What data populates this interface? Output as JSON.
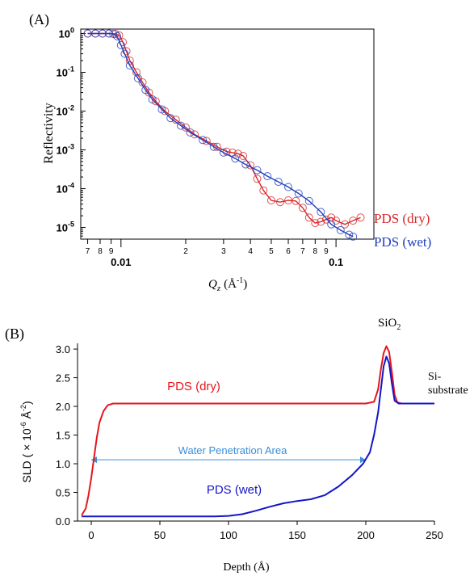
{
  "panel_a": {
    "label": "(A)",
    "ylabel": "Reflectivity",
    "xlabel_q": "Q",
    "xlabel_sub": "z",
    "xlabel_unit": "(Å",
    "xlabel_exp": "-1",
    "xlabel_close": ")",
    "series": [
      {
        "name": "PDS (dry)",
        "color": "#d62728"
      },
      {
        "name": "PDS (wet)",
        "color": "#1f3fbf"
      }
    ]
  },
  "panel_b": {
    "label": "(B)",
    "ylabel": "SLD ( × 10",
    "ylabel_exp1": "-6",
    "ylabel_mid": " Å",
    "ylabel_exp2": "-2",
    "ylabel_close": ")",
    "xlabel": "Depth (Å)",
    "annot_sio2": "SiO",
    "annot_sio2_sub": "2",
    "annot_si1": "Si-",
    "annot_si2": "substrate",
    "annot_water": "Water Penetration Area",
    "series": [
      {
        "name": "PDS (dry)",
        "color": "#e8151b"
      },
      {
        "name": "PDS (wet)",
        "color": "#1515c8"
      }
    ]
  },
  "chart_data": [
    {
      "type": "scatter",
      "title": "(A)",
      "xlabel": "Qz (Å-1)",
      "ylabel": "Reflectivity",
      "x_scale": "log",
      "y_scale": "log",
      "xlim": [
        0.0065,
        0.15
      ],
      "ylim": [
        5e-06,
        1.3
      ],
      "x_major_ticks": [
        {
          "v": 0.01,
          "label": "0.01"
        },
        {
          "v": 0.1,
          "label": "0.1"
        }
      ],
      "x_minor_ticks": [
        {
          "v": 0.007,
          "label": "7"
        },
        {
          "v": 0.008,
          "label": "8"
        },
        {
          "v": 0.009,
          "label": "9"
        },
        {
          "v": 0.02,
          "label": "2"
        },
        {
          "v": 0.03,
          "label": "3"
        },
        {
          "v": 0.04,
          "label": "4"
        },
        {
          "v": 0.05,
          "label": "5"
        },
        {
          "v": 0.06,
          "label": "6"
        },
        {
          "v": 0.07,
          "label": "7"
        },
        {
          "v": 0.08,
          "label": "8"
        },
        {
          "v": 0.09,
          "label": "9"
        }
      ],
      "y_ticks": [
        {
          "exp": 0,
          "label": "10",
          "sup": "0"
        },
        {
          "exp": -1,
          "label": "10",
          "sup": "-1"
        },
        {
          "exp": -2,
          "label": "10",
          "sup": "-2"
        },
        {
          "exp": -3,
          "label": "10",
          "sup": "-3"
        },
        {
          "exp": -4,
          "label": "10",
          "sup": "-4"
        },
        {
          "exp": -5,
          "label": "10",
          "sup": "-5"
        }
      ],
      "series": [
        {
          "name": "PDS (dry)",
          "data": [
            [
              0.007,
              1.0
            ],
            [
              0.0076,
              1.0
            ],
            [
              0.0082,
              1.0
            ],
            [
              0.0088,
              1.0
            ],
            [
              0.0094,
              0.98
            ],
            [
              0.0098,
              0.9
            ],
            [
              0.0102,
              0.6
            ],
            [
              0.0106,
              0.35
            ],
            [
              0.011,
              0.2
            ],
            [
              0.0118,
              0.1
            ],
            [
              0.0126,
              0.055
            ],
            [
              0.0135,
              0.03
            ],
            [
              0.0145,
              0.018
            ],
            [
              0.016,
              0.01
            ],
            [
              0.018,
              0.006
            ],
            [
              0.02,
              0.0038
            ],
            [
              0.022,
              0.0025
            ],
            [
              0.025,
              0.0017
            ],
            [
              0.028,
              0.0012
            ],
            [
              0.031,
              0.0009
            ],
            [
              0.033,
              0.00085
            ],
            [
              0.035,
              0.0008
            ],
            [
              0.037,
              0.0007
            ],
            [
              0.04,
              0.0004
            ],
            [
              0.043,
              0.00018
            ],
            [
              0.046,
              9e-05
            ],
            [
              0.05,
              5e-05
            ],
            [
              0.055,
              4.5e-05
            ],
            [
              0.06,
              5e-05
            ],
            [
              0.065,
              4.8e-05
            ],
            [
              0.07,
              3.2e-05
            ],
            [
              0.075,
              1.8e-05
            ],
            [
              0.08,
              1.3e-05
            ],
            [
              0.085,
              1.4e-05
            ],
            [
              0.09,
              1.6e-05
            ],
            [
              0.095,
              1.8e-05
            ],
            [
              0.1,
              1.5e-05
            ],
            [
              0.11,
              1.2e-05
            ],
            [
              0.12,
              1.5e-05
            ],
            [
              0.13,
              1.8e-05
            ]
          ]
        },
        {
          "name": "PDS (wet)",
          "data": [
            [
              0.007,
              1.0
            ],
            [
              0.0076,
              1.0
            ],
            [
              0.0082,
              1.0
            ],
            [
              0.0088,
              1.0
            ],
            [
              0.0092,
              0.97
            ],
            [
              0.0096,
              0.85
            ],
            [
              0.01,
              0.5
            ],
            [
              0.0104,
              0.3
            ],
            [
              0.011,
              0.15
            ],
            [
              0.012,
              0.07
            ],
            [
              0.013,
              0.035
            ],
            [
              0.014,
              0.02
            ],
            [
              0.0155,
              0.011
            ],
            [
              0.017,
              0.0066
            ],
            [
              0.019,
              0.0042
            ],
            [
              0.021,
              0.0028
            ],
            [
              0.024,
              0.0018
            ],
            [
              0.027,
              0.0012
            ],
            [
              0.03,
              0.00085
            ],
            [
              0.034,
              0.0006
            ],
            [
              0.038,
              0.00042
            ],
            [
              0.043,
              0.0003
            ],
            [
              0.048,
              0.00021
            ],
            [
              0.054,
              0.00015
            ],
            [
              0.06,
              0.00011
            ],
            [
              0.067,
              7.5e-05
            ],
            [
              0.075,
              4.8e-05
            ],
            [
              0.085,
              2.5e-05
            ],
            [
              0.095,
              1.2e-05
            ],
            [
              0.105,
              8.5e-06
            ],
            [
              0.115,
              6.5e-06
            ],
            [
              0.12,
              5.8e-06
            ]
          ]
        }
      ]
    },
    {
      "type": "line",
      "title": "(B)",
      "xlabel": "Depth (Å)",
      "ylabel": "SLD ( × 10-6 Å-2)",
      "xlim": [
        -10,
        250
      ],
      "ylim": [
        0,
        3.1
      ],
      "x_ticks": [
        0,
        50,
        100,
        150,
        200,
        250
      ],
      "y_ticks": [
        0.0,
        0.5,
        1.0,
        1.5,
        2.0,
        2.5,
        3.0
      ],
      "series": [
        {
          "name": "PDS (dry)",
          "data": [
            [
              -7,
              0.1
            ],
            [
              -4,
              0.22
            ],
            [
              -2,
              0.45
            ],
            [
              0,
              0.75
            ],
            [
              2,
              1.1
            ],
            [
              4,
              1.45
            ],
            [
              6,
              1.72
            ],
            [
              9,
              1.92
            ],
            [
              12,
              2.02
            ],
            [
              16,
              2.05
            ],
            [
              25,
              2.05
            ],
            [
              50,
              2.05
            ],
            [
              100,
              2.05
            ],
            [
              150,
              2.05
            ],
            [
              200,
              2.05
            ],
            [
              206,
              2.08
            ],
            [
              209,
              2.3
            ],
            [
              211,
              2.65
            ],
            [
              213,
              2.93
            ],
            [
              215,
              3.05
            ],
            [
              217,
              2.95
            ],
            [
              219,
              2.6
            ],
            [
              221,
              2.2
            ],
            [
              223,
              2.07
            ],
            [
              226,
              2.05
            ],
            [
              250,
              2.05
            ]
          ]
        },
        {
          "name": "PDS (wet)",
          "data": [
            [
              -7,
              0.08
            ],
            [
              0,
              0.08
            ],
            [
              50,
              0.08
            ],
            [
              90,
              0.08
            ],
            [
              100,
              0.09
            ],
            [
              110,
              0.12
            ],
            [
              120,
              0.18
            ],
            [
              130,
              0.25
            ],
            [
              140,
              0.31
            ],
            [
              150,
              0.35
            ],
            [
              160,
              0.38
            ],
            [
              170,
              0.45
            ],
            [
              180,
              0.6
            ],
            [
              190,
              0.8
            ],
            [
              198,
              1.0
            ],
            [
              203,
              1.2
            ],
            [
              206,
              1.5
            ],
            [
              209,
              1.9
            ],
            [
              211,
              2.3
            ],
            [
              213,
              2.7
            ],
            [
              215,
              2.87
            ],
            [
              217,
              2.75
            ],
            [
              219,
              2.4
            ],
            [
              221,
              2.1
            ],
            [
              224,
              2.05
            ],
            [
              250,
              2.05
            ]
          ]
        }
      ]
    }
  ]
}
